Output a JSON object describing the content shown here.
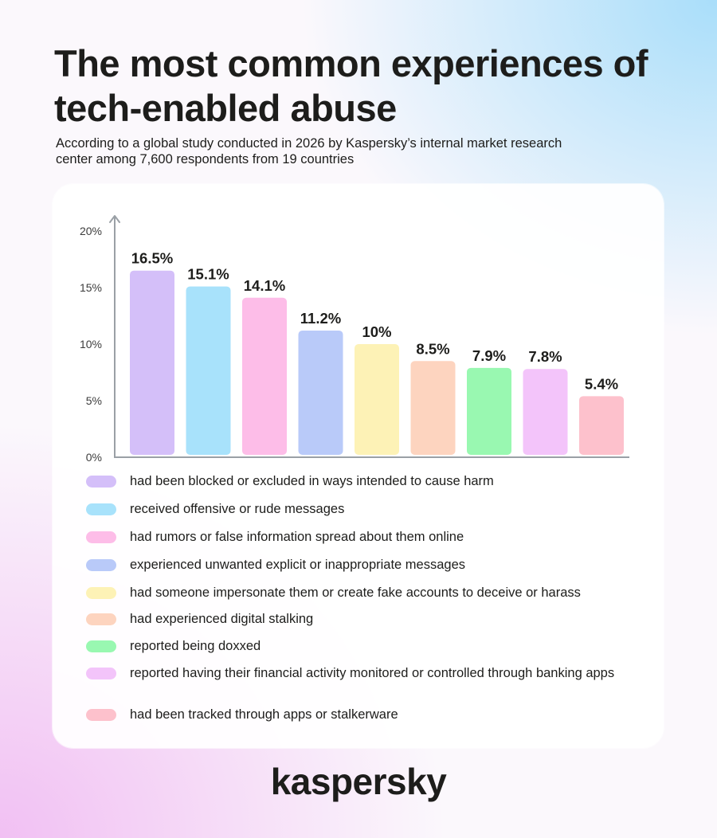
{
  "header": {
    "title": "The most common experiences of tech-enabled abuse",
    "subtitle": "According to a global study conducted in 2026 by Kaspersky’s internal market research center among 7,600 respondents from 19 countries"
  },
  "chart_data": {
    "type": "bar",
    "title": "The most common experiences of tech-enabled abuse",
    "xlabel": "",
    "ylabel": "",
    "ylim": [
      0,
      20
    ],
    "yticks": [
      0,
      5,
      10,
      15,
      20
    ],
    "ytick_labels": [
      "0%",
      "5%",
      "10%",
      "15%",
      "20%"
    ],
    "grid": false,
    "legend": "bottom",
    "categories": [
      "had been blocked or excluded in ways intended to cause harm",
      "received offensive or rude messages",
      "had rumors or false information spread about them online",
      "experienced unwanted explicit or inappropriate messages",
      "had someone impersonate them or create fake accounts to deceive or harass",
      "had experienced digital stalking",
      "reported being doxxed",
      "reported having their financial activity monitored or controlled through banking apps",
      "had been tracked through apps or stalkerware"
    ],
    "values": [
      16.5,
      15.1,
      14.1,
      11.2,
      10,
      8.5,
      7.9,
      7.8,
      5.4
    ],
    "data_labels": [
      "16.5%",
      "15.1%",
      "14.1%",
      "11.2%",
      "10%",
      "8.5%",
      "7.9%",
      "7.8%",
      "5.4%"
    ],
    "colors": [
      "#d4bff9",
      "#a8e2fb",
      "#fdbde8",
      "#b9caf9",
      "#fdf2b6",
      "#fdd4bf",
      "#99f8b1",
      "#f3c4fa",
      "#fdc1cc"
    ]
  },
  "footer": {
    "brand": "kaspersky"
  }
}
